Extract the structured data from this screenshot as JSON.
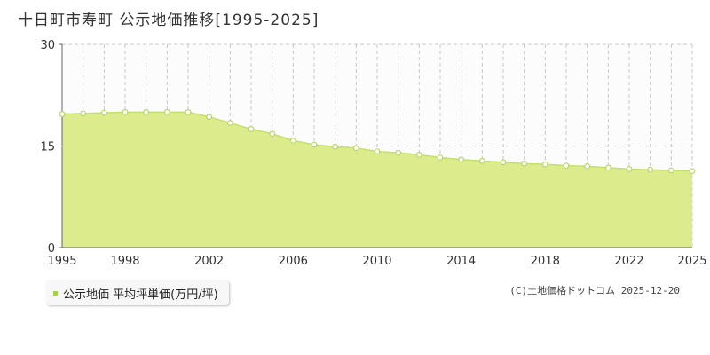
{
  "title": "十日町市寿町 公示地価推移[1995-2025]",
  "legend": {
    "label": "公示地価 平均坪単価(万円/坪)"
  },
  "credit": "(C)土地価格ドットコム 2025-12-20",
  "colors": {
    "fill": "#dcec8c",
    "line": "#c4df6a",
    "marker_stroke": "#b8d66a",
    "legend_marker": "#a6d24a",
    "grid": "#c8c8c8"
  },
  "chart_data": {
    "type": "area",
    "x": [
      1995,
      1996,
      1997,
      1998,
      1999,
      2000,
      2001,
      2002,
      2003,
      2004,
      2005,
      2006,
      2007,
      2008,
      2009,
      2010,
      2011,
      2012,
      2013,
      2014,
      2015,
      2016,
      2017,
      2018,
      2019,
      2020,
      2021,
      2022,
      2023,
      2024,
      2025
    ],
    "series": [
      {
        "name": "公示地価 平均坪単価(万円/坪)",
        "values": [
          19.7,
          19.8,
          19.9,
          20.0,
          20.0,
          20.0,
          20.0,
          19.3,
          18.4,
          17.5,
          16.8,
          15.8,
          15.2,
          14.9,
          14.7,
          14.2,
          14.0,
          13.7,
          13.3,
          13.0,
          12.8,
          12.6,
          12.4,
          12.3,
          12.1,
          12.0,
          11.8,
          11.6,
          11.5,
          11.4,
          11.3
        ]
      }
    ],
    "xticks": [
      "1995",
      "1998",
      "2002",
      "2006",
      "2010",
      "2014",
      "2018",
      "2022",
      "2025"
    ],
    "yticks": [
      "0",
      "15",
      "30"
    ],
    "xlim": [
      1995,
      2025
    ],
    "ylim": [
      0,
      30
    ],
    "grid": true,
    "legend_position": "bottom-left"
  }
}
